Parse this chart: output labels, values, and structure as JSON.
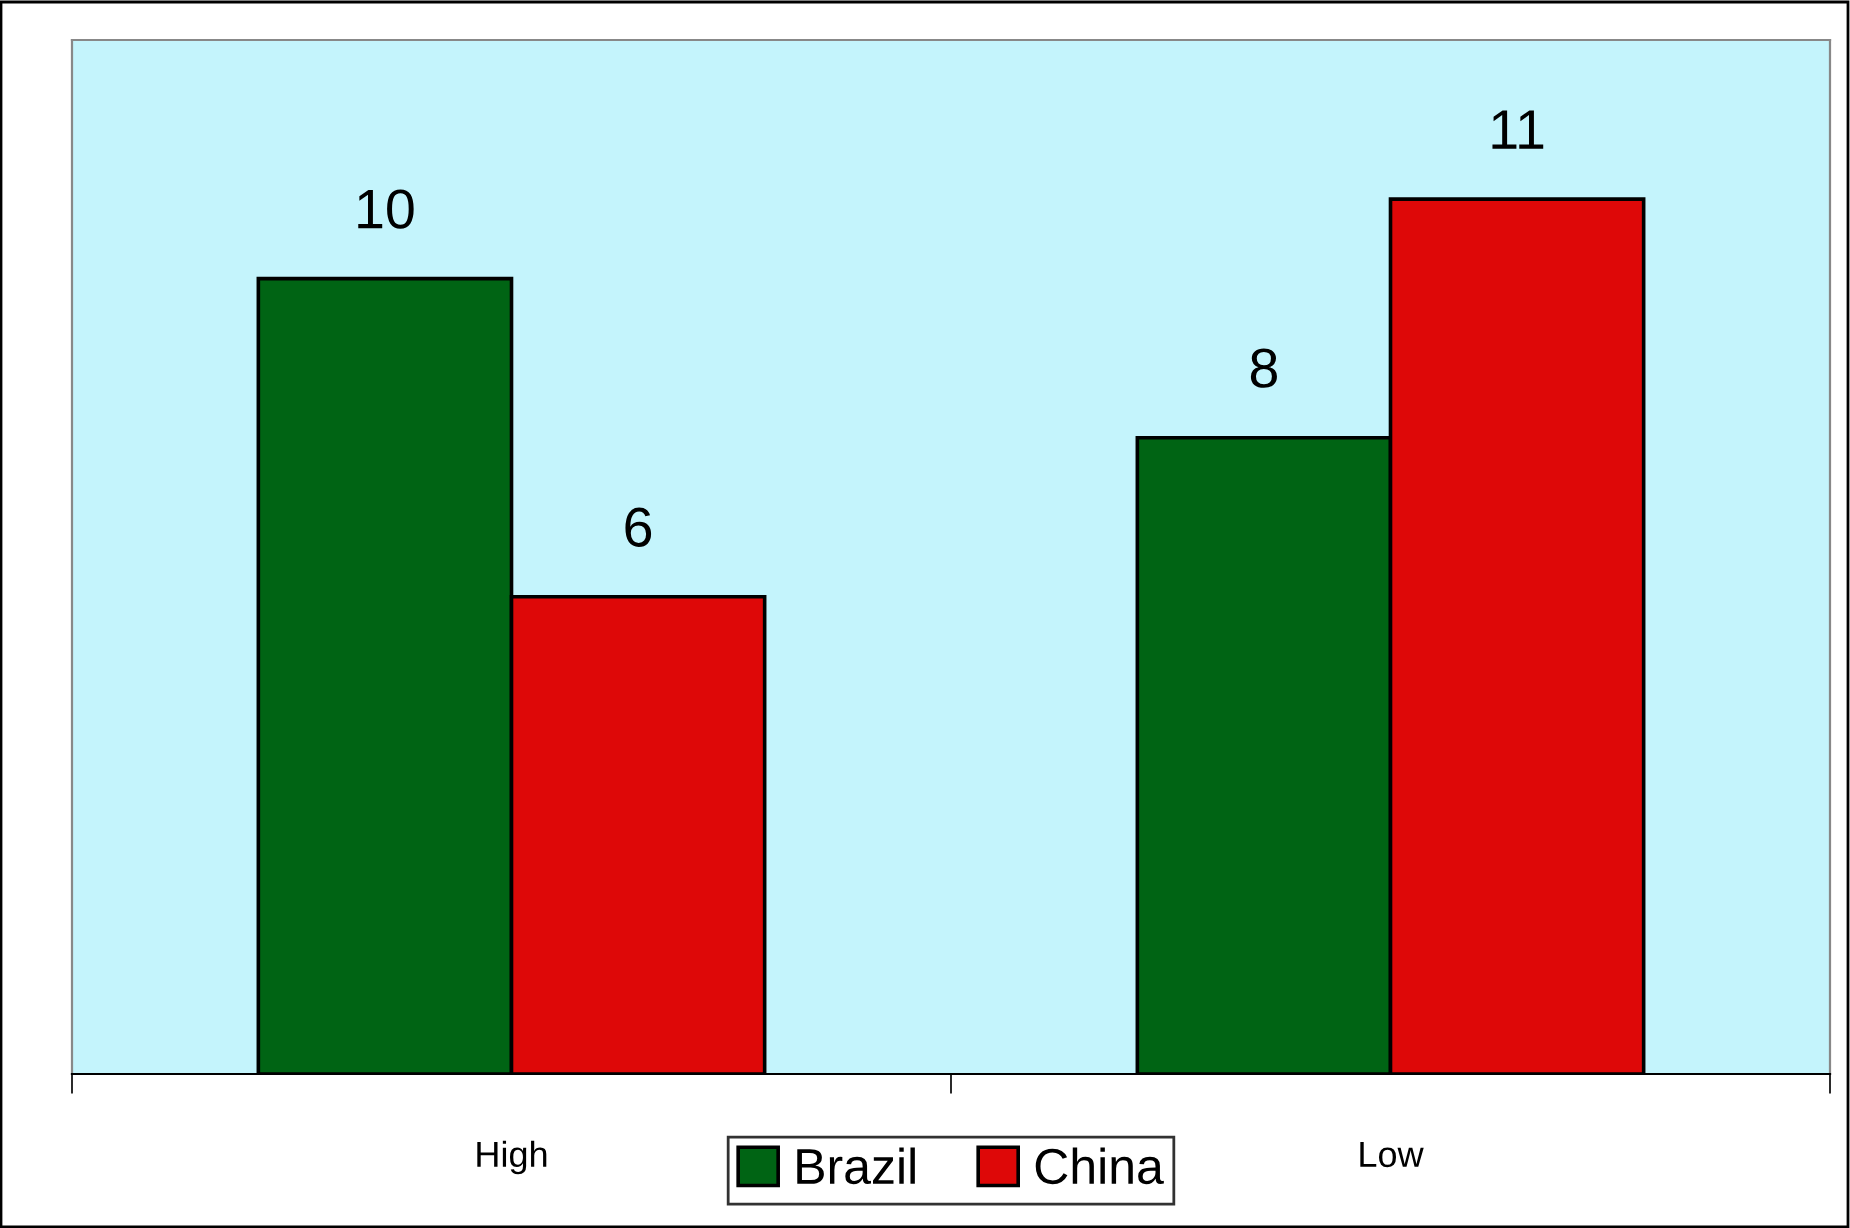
{
  "chart_data": {
    "type": "bar",
    "categories": [
      "High",
      "Low"
    ],
    "series": [
      {
        "name": "Brazil",
        "color": "#006414",
        "values": [
          10,
          8
        ]
      },
      {
        "name": "China",
        "color": "#de0808",
        "values": [
          6,
          11
        ]
      }
    ],
    "ylim": [
      0,
      13
    ],
    "data_labels": true,
    "legend": "bottom",
    "grid": false,
    "tick_labels": "x"
  }
}
